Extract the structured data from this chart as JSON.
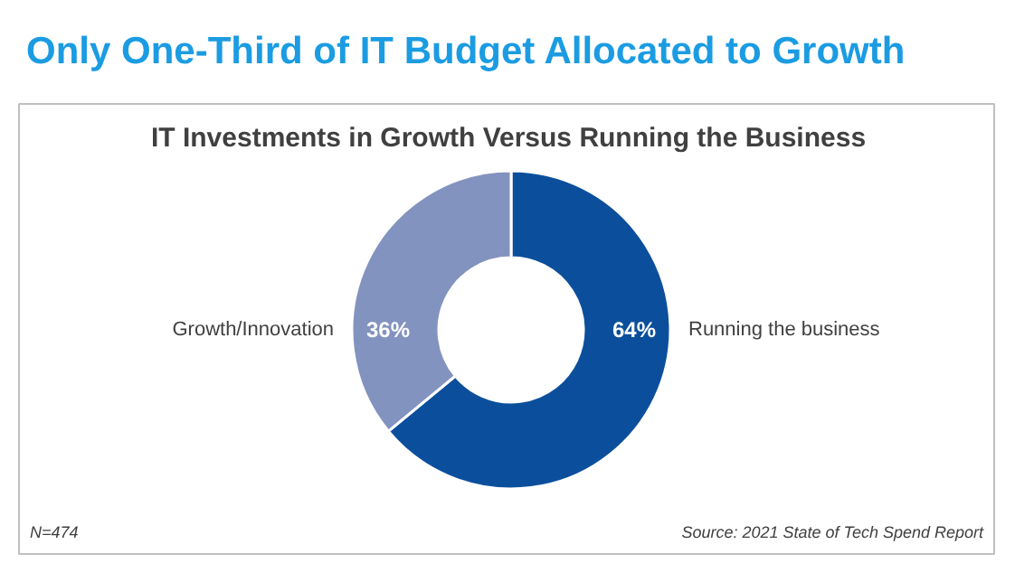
{
  "chart_data": {
    "type": "donut",
    "title": "Only One-Third of IT Budget Allocated to Growth",
    "subtitle": "IT Investments in Growth Versus Running the Business",
    "categories": [
      "Running the business",
      "Growth/Innovation"
    ],
    "values": [
      64,
      36
    ],
    "value_labels": [
      "64%",
      "36%"
    ],
    "colors": [
      "#0b4f9c",
      "#8393bf"
    ],
    "annotations": [
      "N=474",
      "Source: 2021 State of Tech Spend Report"
    ]
  }
}
